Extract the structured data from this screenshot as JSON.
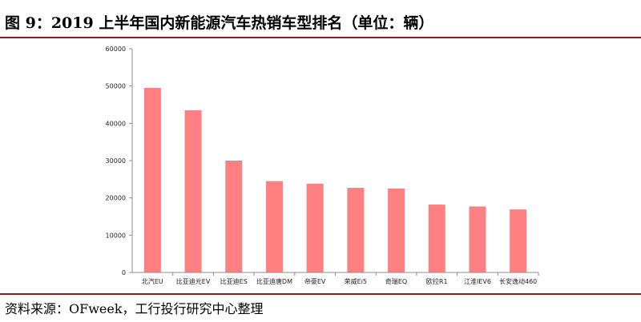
{
  "title": "图 9：2019 上半年国内新能源汽车热销车型排名（单位：辆）",
  "source": "资料来源：OFweek，工行投行研究中心整理",
  "colors": {
    "bar": "#ff8080",
    "rule": "#8b1a1a",
    "axis": "#8c8c8c"
  },
  "chart_data": {
    "type": "bar",
    "categories": [
      "北汽EU",
      "比亚迪元EV",
      "比亚迪ES",
      "比亚迪唐DM",
      "帝豪EV",
      "荣威Ei5",
      "奇瑞EQ",
      "欧拉R1",
      "江淮IEV6",
      "长安逸动460"
    ],
    "values": [
      49500,
      43500,
      30000,
      24500,
      23800,
      22700,
      22500,
      18200,
      17700,
      16900
    ],
    "yticks": [
      0,
      10000,
      20000,
      30000,
      40000,
      50000,
      60000
    ],
    "ylim": [
      0,
      60000
    ],
    "xlabel": "",
    "ylabel": "",
    "grid": false
  }
}
